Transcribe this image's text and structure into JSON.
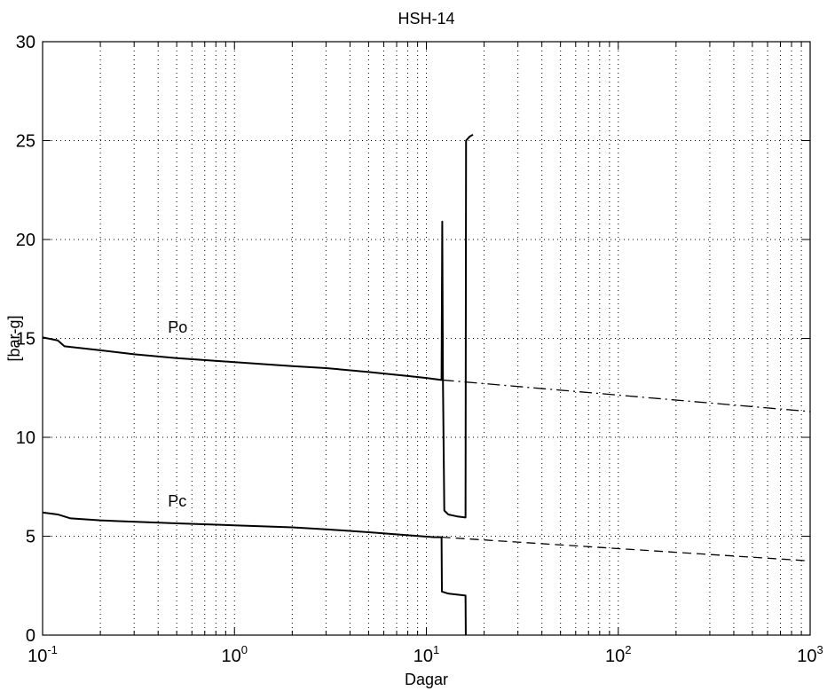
{
  "chart_data": {
    "type": "line",
    "title": "HSH-14",
    "xlabel": "Dagar",
    "ylabel": "[bar-g]",
    "xscale": "log",
    "xlim": [
      0.1,
      1000
    ],
    "ylim": [
      0,
      30
    ],
    "grid": true,
    "x_ticks": [
      {
        "base": "10",
        "exp": "-1",
        "value": 0.1
      },
      {
        "base": "10",
        "exp": "0",
        "value": 1
      },
      {
        "base": "10",
        "exp": "1",
        "value": 10
      },
      {
        "base": "10",
        "exp": "2",
        "value": 100
      },
      {
        "base": "10",
        "exp": "3",
        "value": 1000
      }
    ],
    "y_ticks": [
      "0",
      "5",
      "10",
      "15",
      "20",
      "25",
      "30"
    ],
    "annotations": [
      {
        "text": "Po",
        "x": 0.45,
        "y": 15.3
      },
      {
        "text": "Pc",
        "x": 0.45,
        "y": 6.5
      }
    ],
    "series": [
      {
        "style": "solid",
        "points": [
          [
            0.1,
            15.05
          ],
          [
            0.12,
            14.9
          ],
          [
            0.13,
            14.6
          ],
          [
            0.2,
            14.4
          ],
          [
            0.3,
            14.2
          ],
          [
            0.5,
            14.0
          ],
          [
            1,
            13.8
          ],
          [
            2,
            13.6
          ],
          [
            3,
            13.5
          ],
          [
            5,
            13.3
          ],
          [
            8,
            13.1
          ],
          [
            10,
            13.0
          ],
          [
            12,
            12.9
          ],
          [
            12.1,
            20.9
          ],
          [
            12.2,
            12.9
          ],
          [
            12.4,
            6.3
          ],
          [
            13,
            6.1
          ],
          [
            14.5,
            6.0
          ],
          [
            16,
            5.95
          ],
          [
            16.1,
            25.0
          ],
          [
            16.8,
            25.2
          ],
          [
            17.5,
            25.3
          ]
        ]
      },
      {
        "style": "dashdot",
        "points": [
          [
            12,
            12.9
          ],
          [
            1000,
            11.3
          ]
        ]
      },
      {
        "style": "solid",
        "points": [
          [
            0.1,
            6.2
          ],
          [
            0.12,
            6.1
          ],
          [
            0.14,
            5.9
          ],
          [
            0.2,
            5.8
          ],
          [
            0.5,
            5.65
          ],
          [
            1,
            5.55
          ],
          [
            2,
            5.45
          ],
          [
            3,
            5.35
          ],
          [
            5,
            5.2
          ],
          [
            8,
            5.05
          ],
          [
            11,
            4.95
          ],
          [
            12,
            4.95
          ],
          [
            12.05,
            2.2
          ],
          [
            13,
            2.1
          ],
          [
            16,
            2.0
          ],
          [
            16.05,
            0
          ]
        ]
      },
      {
        "style": "dashed",
        "points": [
          [
            12,
            4.95
          ],
          [
            1000,
            3.75
          ]
        ]
      }
    ]
  }
}
